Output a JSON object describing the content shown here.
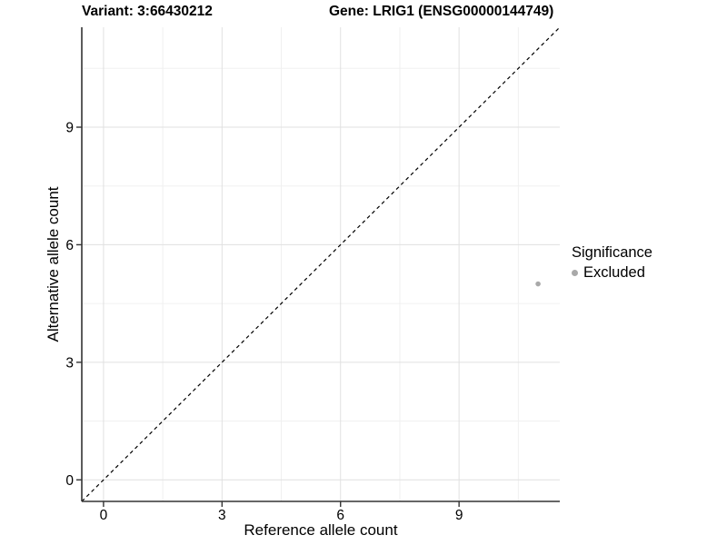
{
  "header": {
    "variant_title": "Variant: 3:66430212",
    "gene_title": "Gene: LRIG1 (ENSG00000144749)"
  },
  "axes": {
    "x_label": "Reference allele count",
    "y_label": "Alternative allele count"
  },
  "legend": {
    "title": "Significance",
    "items": [
      {
        "label": "Excluded",
        "color": "#a9a9a9"
      }
    ]
  },
  "colors": {
    "background": "#ffffff",
    "major_grid": "#e0e0e0",
    "minor_grid": "#f0f0f0",
    "axis_line": "#333333",
    "tick_mark": "#333333",
    "tick_label": "#000000",
    "reference_line": "#000000",
    "point": "#a9a9a9"
  },
  "chart_data": {
    "type": "scatter",
    "title": "",
    "xlabel": "Reference allele count",
    "ylabel": "Alternative allele count",
    "xlim": [
      -0.55,
      11.55
    ],
    "ylim": [
      -0.55,
      11.55
    ],
    "x_ticks": [
      0,
      3,
      6,
      9
    ],
    "y_ticks": [
      0,
      3,
      6,
      9
    ],
    "x_minor_ticks": [
      1.5,
      4.5,
      7.5,
      10.5
    ],
    "y_minor_ticks": [
      1.5,
      4.5,
      7.5,
      10.5
    ],
    "grid": true,
    "legend_position": "right",
    "series": [
      {
        "name": "Excluded",
        "color": "#a9a9a9",
        "points": [
          {
            "x": 11,
            "y": 5
          }
        ]
      }
    ],
    "reference_line": {
      "type": "identity",
      "equation": "y = x",
      "style": "dashed",
      "color": "#000000"
    }
  }
}
